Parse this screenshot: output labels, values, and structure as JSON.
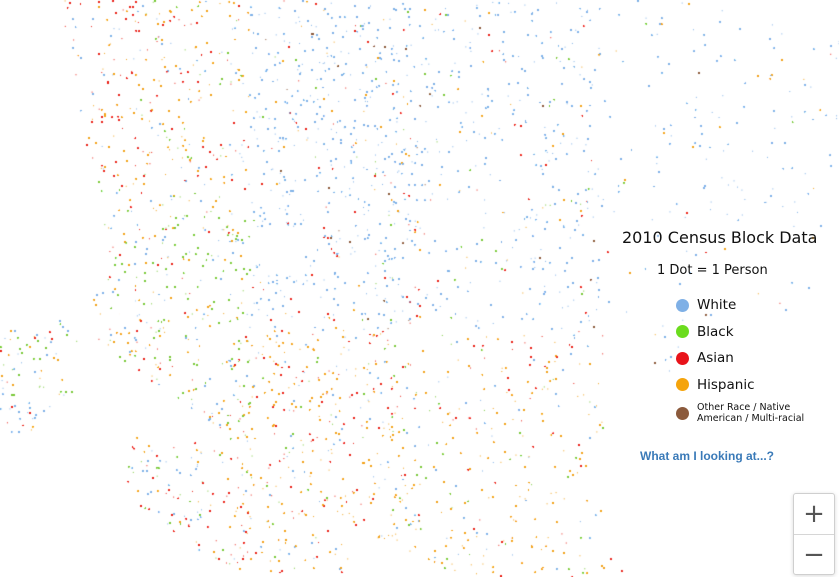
{
  "map": {
    "colors": {
      "white": "#7fb0e6",
      "black": "#7ac83a",
      "asian": "#e8241a",
      "hispanic": "#f0a21c",
      "other": "#8b5a3c"
    }
  },
  "legend": {
    "title": "2010 Census Block Data",
    "subtitle": "1 Dot = 1 Person",
    "items": [
      {
        "label": "White",
        "color": "#7fb0e6"
      },
      {
        "label": "Black",
        "color": "#6bdc1e"
      },
      {
        "label": "Asian",
        "color": "#e8131a"
      },
      {
        "label": "Hispanic",
        "color": "#f5a40c"
      },
      {
        "label": "Other Race / Native American / Multi-racial",
        "color": "#8b5a3c"
      }
    ]
  },
  "help_link": "What am I looking at...?",
  "zoom": {
    "in_icon": "plus-icon",
    "out_icon": "minus-icon",
    "in_label": "+",
    "out_label": "−"
  }
}
